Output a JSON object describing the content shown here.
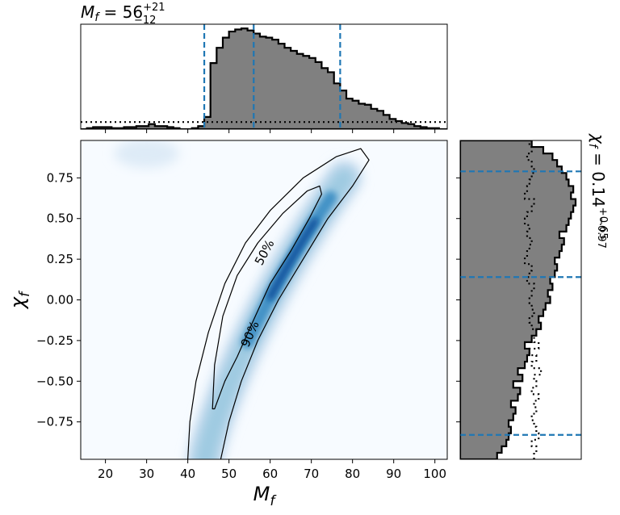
{
  "chart_data": [
    {
      "type": "histogram",
      "panel": "marginal-mass",
      "title_base": "M",
      "title_sub": "f",
      "title_value": " = 56",
      "title_plus": "+21",
      "title_minus": "−12",
      "xlim": [
        14,
        103
      ],
      "bin_width": 1.5,
      "bins_start": 14,
      "posterior_values": [
        0.0,
        0.01,
        0.02,
        0.02,
        0.02,
        0.01,
        0.01,
        0.02,
        0.02,
        0.03,
        0.03,
        0.05,
        0.03,
        0.03,
        0.02,
        0.01,
        0.0,
        0.0,
        0.01,
        0.03,
        0.12,
        0.65,
        0.8,
        0.9,
        0.96,
        0.98,
        0.99,
        0.97,
        0.94,
        0.91,
        0.9,
        0.88,
        0.84,
        0.8,
        0.77,
        0.74,
        0.72,
        0.7,
        0.66,
        0.6,
        0.56,
        0.45,
        0.38,
        0.3,
        0.28,
        0.25,
        0.24,
        0.2,
        0.18,
        0.14,
        0.1,
        0.08,
        0.06,
        0.05,
        0.03,
        0.02,
        0.01,
        0.01,
        0.0,
        0.0
      ],
      "prior_level": 0.07,
      "quantile_lines": [
        44,
        56,
        77
      ],
      "colors": {
        "fill": "#808080",
        "edge": "#000000",
        "quantile": "#1f77b4"
      }
    },
    {
      "type": "heatmap",
      "panel": "joint",
      "xlabel_base": "M",
      "xlabel_sub": "f",
      "ylabel_base": "χ",
      "ylabel_sub": "f",
      "xlim": [
        14,
        103
      ],
      "ylim": [
        -0.98,
        0.98
      ],
      "xticks": [
        20,
        30,
        40,
        50,
        60,
        70,
        80,
        90,
        100
      ],
      "yticks": [
        0.75,
        0.5,
        0.25,
        0.0,
        -0.25,
        -0.5,
        -0.75
      ],
      "ytick_labels": [
        "0.75",
        "0.50",
        "0.25",
        "0.00",
        "−0.25",
        "−0.50",
        "−0.75"
      ],
      "contour_labels": [
        "50%",
        "90%"
      ],
      "colormap": "Blues"
    },
    {
      "type": "histogram",
      "panel": "marginal-spin",
      "orientation": "horizontal",
      "title_base": "χ",
      "title_sub": "f",
      "title_value": " = 0.14",
      "title_plus": "+0.65",
      "title_minus": "−0.97",
      "ylim": [
        -0.98,
        0.98
      ],
      "bin_width": 0.04,
      "bins_start": -0.98,
      "posterior_values": [
        0.32,
        0.36,
        0.4,
        0.42,
        0.44,
        0.42,
        0.46,
        0.48,
        0.44,
        0.5,
        0.52,
        0.46,
        0.54,
        0.5,
        0.56,
        0.58,
        0.6,
        0.56,
        0.62,
        0.66,
        0.7,
        0.68,
        0.72,
        0.74,
        0.78,
        0.76,
        0.8,
        0.78,
        0.82,
        0.84,
        0.82,
        0.86,
        0.88,
        0.9,
        0.86,
        0.92,
        0.94,
        0.96,
        0.98,
        1.0,
        0.96,
        0.98,
        0.94,
        0.92,
        0.88,
        0.84,
        0.8,
        0.72,
        0.62
      ],
      "prior_values": [
        0.64,
        0.66,
        0.62,
        0.68,
        0.66,
        0.64,
        0.62,
        0.66,
        0.64,
        0.68,
        0.62,
        0.66,
        0.64,
        0.7,
        0.62,
        0.66,
        0.6,
        0.68,
        0.64,
        0.66,
        0.62,
        0.6,
        0.64,
        0.62,
        0.6,
        0.62,
        0.64,
        0.58,
        0.6,
        0.62,
        0.56,
        0.58,
        0.6,
        0.62,
        0.58,
        0.6,
        0.56,
        0.58,
        0.62,
        0.64,
        0.56,
        0.58,
        0.6,
        0.62,
        0.64,
        0.62,
        0.58,
        0.62,
        0.6
      ],
      "quantile_lines": [
        -0.83,
        0.14,
        0.79
      ],
      "colors": {
        "fill": "#808080",
        "edge": "#000000",
        "quantile": "#1f77b4"
      }
    }
  ]
}
